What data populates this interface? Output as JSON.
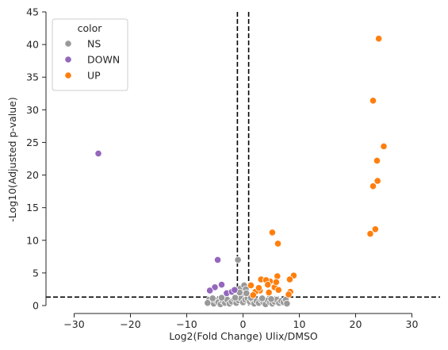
{
  "chart_data": {
    "type": "scatter",
    "xlabel": "Log2(Fold Change) Ulix/DMSO",
    "ylabel": "-Log10(Adjusted p-value)",
    "xlim": [
      -35,
      35
    ],
    "ylim": [
      0,
      45
    ],
    "xticks": [
      -30,
      -20,
      -10,
      0,
      10,
      20,
      30
    ],
    "yticks": [
      0,
      5,
      10,
      15,
      20,
      25,
      30,
      35,
      40,
      45
    ],
    "vlines": [
      -1,
      1
    ],
    "hline": 1.3,
    "grid": false,
    "legend": {
      "title": "color",
      "placement": "top-left"
    },
    "series": [
      {
        "name": "NS",
        "color": "#999999",
        "points": [
          [
            -0.9,
            7.0
          ],
          [
            -0.5,
            2.6
          ],
          [
            0.2,
            3.1
          ],
          [
            0.5,
            2.5
          ],
          [
            -0.2,
            1.8
          ],
          [
            -6.0,
            0.9
          ],
          [
            -5.6,
            0.6
          ],
          [
            -5.2,
            0.3
          ],
          [
            -4.8,
            0.8
          ],
          [
            -4.4,
            0.5
          ],
          [
            -4.0,
            0.2
          ],
          [
            -3.6,
            0.7
          ],
          [
            -3.2,
            0.4
          ],
          [
            -2.8,
            0.9
          ],
          [
            -2.4,
            0.3
          ],
          [
            -2.0,
            0.6
          ],
          [
            -1.6,
            1.0
          ],
          [
            -1.2,
            0.4
          ],
          [
            -0.8,
            0.8
          ],
          [
            -0.4,
            1.1
          ],
          [
            0.0,
            0.5
          ],
          [
            0.4,
            0.9
          ],
          [
            0.8,
            1.1
          ],
          [
            1.2,
            0.6
          ],
          [
            1.6,
            0.9
          ],
          [
            2.0,
            0.3
          ],
          [
            2.4,
            0.7
          ],
          [
            2.8,
            0.4
          ],
          [
            3.2,
            0.9
          ],
          [
            3.6,
            0.5
          ],
          [
            4.0,
            0.2
          ],
          [
            4.4,
            0.8
          ],
          [
            4.8,
            0.5
          ],
          [
            5.2,
            0.3
          ],
          [
            5.6,
            0.6
          ],
          [
            6.0,
            0.9
          ],
          [
            6.4,
            0.4
          ],
          [
            6.8,
            0.7
          ],
          [
            7.2,
            0.5
          ],
          [
            7.6,
            0.9
          ],
          [
            -5.4,
            1.1
          ],
          [
            -3.8,
            1.2
          ],
          [
            -1.4,
            1.2
          ],
          [
            1.4,
            1.2
          ],
          [
            3.4,
            1.1
          ],
          [
            -0.6,
            2.0
          ],
          [
            0.6,
            1.9
          ],
          [
            -6.3,
            0.4
          ],
          [
            7.8,
            0.3
          ],
          [
            5.0,
            1.0
          ]
        ]
      },
      {
        "name": "DOWN",
        "color": "#9467bd",
        "points": [
          [
            -25.7,
            23.3
          ],
          [
            -4.5,
            7.0
          ],
          [
            -3.8,
            3.2
          ],
          [
            -5.0,
            2.8
          ],
          [
            -5.9,
            2.3
          ],
          [
            -2.9,
            1.9
          ],
          [
            -2.0,
            2.1
          ],
          [
            -1.5,
            2.4
          ]
        ]
      },
      {
        "name": "UP",
        "color": "#ff7f0e",
        "points": [
          [
            24.1,
            40.9
          ],
          [
            23.1,
            31.4
          ],
          [
            25.0,
            24.4
          ],
          [
            23.8,
            22.2
          ],
          [
            23.9,
            19.1
          ],
          [
            23.1,
            18.3
          ],
          [
            23.5,
            11.7
          ],
          [
            22.6,
            11.0
          ],
          [
            5.2,
            11.2
          ],
          [
            6.2,
            9.5
          ],
          [
            9.0,
            4.6
          ],
          [
            8.3,
            4.0
          ],
          [
            6.1,
            4.5
          ],
          [
            4.8,
            3.7
          ],
          [
            3.2,
            4.0
          ],
          [
            1.4,
            3.1
          ],
          [
            3.0,
            2.3
          ],
          [
            4.1,
            3.9
          ],
          [
            5.6,
            2.8
          ],
          [
            6.3,
            2.4
          ],
          [
            8.4,
            2.1
          ],
          [
            2.2,
            2.1
          ],
          [
            1.8,
            1.6
          ],
          [
            4.4,
            3.2
          ],
          [
            5.9,
            3.6
          ],
          [
            8.1,
            1.7
          ],
          [
            2.8,
            2.7
          ],
          [
            4.6,
            2.0
          ]
        ]
      }
    ]
  }
}
